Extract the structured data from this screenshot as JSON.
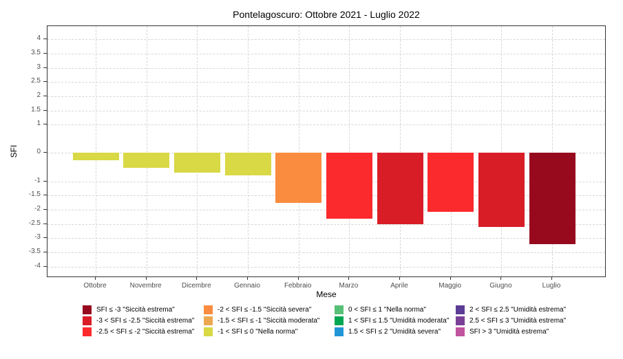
{
  "chart_data": {
    "type": "bar",
    "title": "Pontelagoscuro: Ottobre 2021 - Luglio 2022",
    "xlabel": "Mese",
    "ylabel": "SFI",
    "categories": [
      "Ottobre",
      "Novembre",
      "Dicembre",
      "Gennaio",
      "Febbraio",
      "Marzo",
      "Aprile",
      "Maggio",
      "Giugno",
      "Luglio"
    ],
    "values": [
      -0.26,
      -0.52,
      -0.7,
      -0.78,
      -1.77,
      -2.31,
      -2.5,
      -2.08,
      -2.6,
      -3.22
    ],
    "bar_colors": [
      "#d9d845",
      "#d9d845",
      "#d9d845",
      "#d9d845",
      "#fa8c3f",
      "#fb2a2d",
      "#d81d27",
      "#fb2a2d",
      "#d81d27",
      "#970a1e"
    ],
    "ylim": [
      -4.4,
      4.47
    ],
    "yticks": [
      4,
      3.5,
      3,
      2.5,
      2,
      1.5,
      1,
      0,
      -1,
      -1.5,
      -2,
      -2.5,
      -3,
      -3.5,
      -4
    ],
    "grid": "dashed horizontal and vertical at ticks",
    "legend_position": "bottom",
    "gridline_color": "#d6d6d6",
    "panel_border_color": "#333333",
    "legend_columns": [
      [
        {
          "label": "SFI ≤ -3 \"Siccità estrema\"",
          "color": "#970a1e"
        },
        {
          "label": "-3 < SFI ≤ -2.5 \"Siccità estrema\"",
          "color": "#d81d27"
        },
        {
          "label": "-2.5 < SFI ≤ -2 \"Siccità estrema\"",
          "color": "#fb2a2d"
        }
      ],
      [
        {
          "label": "-2 < SFI ≤ -1.5 \"Siccità severa\"",
          "color": "#fa8c3f"
        },
        {
          "label": "-1.5 < SFI ≤ -1 \"Siccità moderata\"",
          "color": "#eca850"
        },
        {
          "label": "-1 < SFI ≤ 0 \"Nella norma\"",
          "color": "#d9d845"
        }
      ],
      [
        {
          "label": "0 < SFI ≤ 1 \"Nella norma\"",
          "color": "#57c077"
        },
        {
          "label": "1 < SFI ≤ 1.5 \"Umidità moderata\"",
          "color": "#00a651"
        },
        {
          "label": "1.5 < SFI ≤ 2 \"Umidità severa\"",
          "color": "#2196d6"
        }
      ],
      [
        {
          "label": "2 < SFI ≤ 2.5 \"Umidità estrema\"",
          "color": "#5c3d96"
        },
        {
          "label": "2.5 < SFI ≤ 3 \"Umidità estrema\"",
          "color": "#7b3f98"
        },
        {
          "label": "SFI > 3 \"Umidità estrema\"",
          "color": "#c0549f"
        }
      ]
    ]
  }
}
